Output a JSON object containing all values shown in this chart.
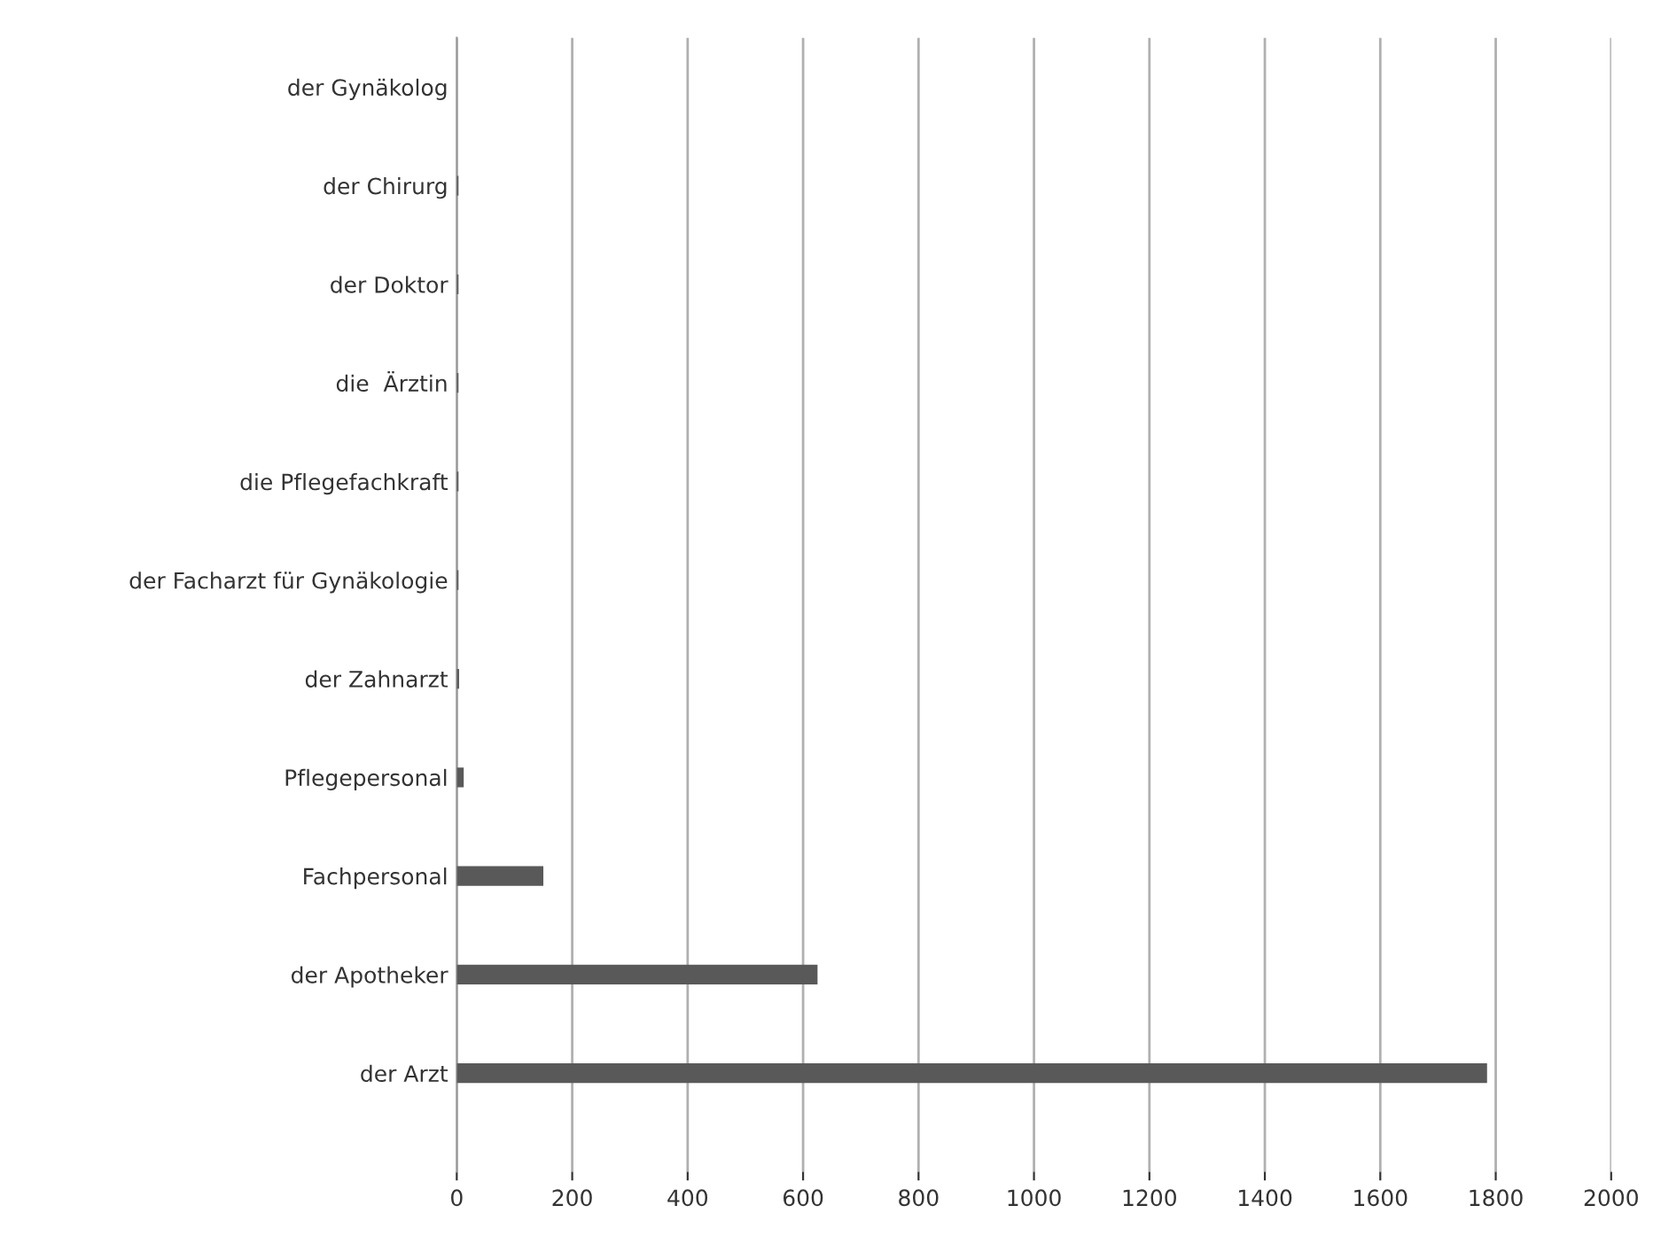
{
  "chart_data": {
    "type": "bar",
    "orientation": "horizontal",
    "categories": [
      "der Gynäkolog",
      "der Chirurg",
      "der Doktor",
      "die  Ärztin",
      "die Pflegefachkraft",
      "der Facharzt für Gynäkologie",
      "der Zahnarzt",
      "Pflegepersonal",
      "Fachpersonal",
      "der Apotheker",
      "der Arzt"
    ],
    "values": [
      0,
      3,
      3,
      3,
      3,
      3,
      4,
      12,
      150,
      625,
      1785
    ],
    "color": "#595959",
    "xlim": [
      0,
      2000
    ],
    "xticks": [
      0,
      200,
      400,
      600,
      800,
      1000,
      1200,
      1400,
      1600,
      1800,
      2000
    ],
    "grid": "x",
    "legend": false
  }
}
